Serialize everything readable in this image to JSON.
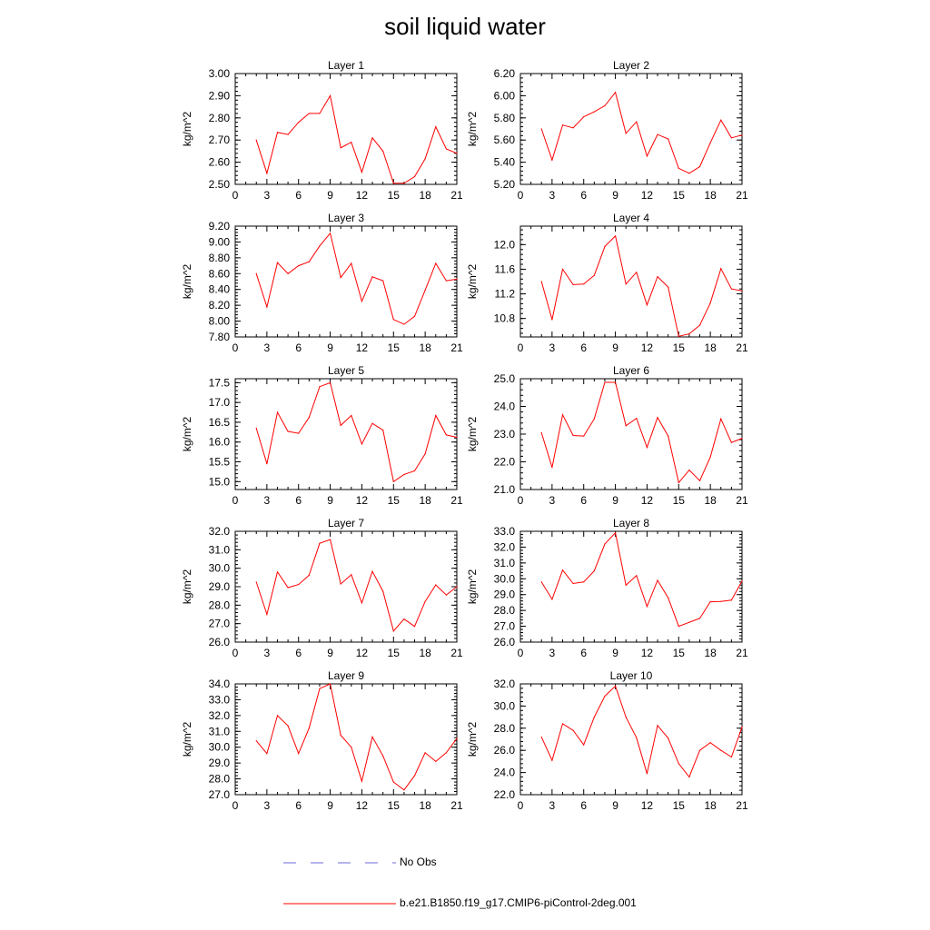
{
  "title": "soil liquid water",
  "legend": [
    {
      "label": "No Obs",
      "color": "#6a6ad8",
      "dash": "14,16"
    },
    {
      "label": "b.e21.B1850.f19_g17.CMIP6-piControl-2deg.001",
      "color": "#ff0000",
      "dash": ""
    }
  ],
  "chart_data": [
    {
      "type": "line",
      "title": "Layer 1",
      "ylabel": "kg/m^2",
      "xlim": [
        0,
        21
      ],
      "xticks": [
        0,
        3,
        6,
        9,
        12,
        15,
        18,
        21
      ],
      "ylim": [
        2.5,
        3.0
      ],
      "yticks": [
        2.5,
        2.6,
        2.7,
        2.8,
        2.9,
        3.0
      ],
      "ytick_labels": [
        "2.50",
        "2.60",
        "2.70",
        "2.80",
        "2.90",
        "3.00"
      ],
      "series": [
        {
          "color": "#ff0000",
          "x": [
            2,
            3,
            4,
            5,
            6,
            7,
            8,
            9,
            10,
            11,
            12,
            13,
            14,
            15,
            16,
            17,
            18,
            19,
            20,
            21
          ],
          "y": [
            2.7,
            2.55,
            2.735,
            2.725,
            2.78,
            2.82,
            2.82,
            2.9,
            2.665,
            2.69,
            2.555,
            2.71,
            2.65,
            2.505,
            2.505,
            2.535,
            2.615,
            2.76,
            2.66,
            2.64
          ]
        }
      ]
    },
    {
      "type": "line",
      "title": "Layer 2",
      "ylabel": "kg/m^2",
      "xlim": [
        0,
        21
      ],
      "xticks": [
        0,
        3,
        6,
        9,
        12,
        15,
        18,
        21
      ],
      "ylim": [
        5.2,
        6.2
      ],
      "yticks": [
        5.2,
        5.4,
        5.6,
        5.8,
        6.0,
        6.2
      ],
      "ytick_labels": [
        "5.20",
        "5.40",
        "5.60",
        "5.80",
        "6.00",
        "6.20"
      ],
      "series": [
        {
          "color": "#ff0000",
          "x": [
            2,
            3,
            4,
            5,
            6,
            7,
            8,
            9,
            10,
            11,
            12,
            13,
            14,
            15,
            16,
            17,
            18,
            19,
            20,
            21
          ],
          "y": [
            5.7,
            5.42,
            5.735,
            5.71,
            5.81,
            5.855,
            5.91,
            6.03,
            5.66,
            5.765,
            5.455,
            5.65,
            5.61,
            5.345,
            5.3,
            5.36,
            5.575,
            5.78,
            5.62,
            5.645
          ]
        }
      ]
    },
    {
      "type": "line",
      "title": "Layer 3",
      "ylabel": "kg/m^2",
      "xlim": [
        0,
        21
      ],
      "xticks": [
        0,
        3,
        6,
        9,
        12,
        15,
        18,
        21
      ],
      "ylim": [
        7.8,
        9.2
      ],
      "yticks": [
        7.8,
        8.0,
        8.2,
        8.4,
        8.6,
        8.8,
        9.0,
        9.2
      ],
      "ytick_labels": [
        "7.80",
        "8.00",
        "8.20",
        "8.40",
        "8.60",
        "8.80",
        "9.00",
        "9.20"
      ],
      "series": [
        {
          "color": "#ff0000",
          "x": [
            2,
            3,
            4,
            5,
            6,
            7,
            8,
            9,
            10,
            11,
            12,
            13,
            14,
            15,
            16,
            17,
            18,
            19,
            20,
            21
          ],
          "y": [
            8.6,
            8.18,
            8.74,
            8.6,
            8.7,
            8.75,
            8.95,
            9.11,
            8.55,
            8.73,
            8.25,
            8.56,
            8.51,
            8.02,
            7.96,
            8.06,
            8.39,
            8.73,
            8.51,
            8.53
          ]
        }
      ]
    },
    {
      "type": "line",
      "title": "Layer 4",
      "ylabel": "kg/m^2",
      "xlim": [
        0,
        21
      ],
      "xticks": [
        0,
        3,
        6,
        9,
        12,
        15,
        18,
        21
      ],
      "ylim": [
        10.5,
        12.3
      ],
      "yticks": [
        10.8,
        11.2,
        11.6,
        12.0
      ],
      "ytick_labels": [
        "10.8",
        "11.2",
        "11.6",
        "12.0"
      ],
      "series": [
        {
          "color": "#ff0000",
          "x": [
            2,
            3,
            4,
            5,
            6,
            7,
            8,
            9,
            10,
            11,
            12,
            13,
            14,
            15,
            16,
            17,
            18,
            19,
            20,
            21
          ],
          "y": [
            11.4,
            10.78,
            11.6,
            11.35,
            11.36,
            11.5,
            11.97,
            12.14,
            11.36,
            11.55,
            11.02,
            11.48,
            11.31,
            10.51,
            10.55,
            10.69,
            11.05,
            11.61,
            11.28,
            11.25
          ]
        }
      ]
    },
    {
      "type": "line",
      "title": "Layer 5",
      "ylabel": "kg/m^2",
      "xlim": [
        0,
        21
      ],
      "xticks": [
        0,
        3,
        6,
        9,
        12,
        15,
        18,
        21
      ],
      "ylim": [
        14.8,
        17.6
      ],
      "yticks": [
        15.0,
        15.5,
        16.0,
        16.5,
        17.0,
        17.5
      ],
      "ytick_labels": [
        "15.0",
        "15.5",
        "16.0",
        "16.5",
        "17.0",
        "17.5"
      ],
      "series": [
        {
          "color": "#ff0000",
          "x": [
            2,
            3,
            4,
            5,
            6,
            7,
            8,
            9,
            10,
            11,
            12,
            13,
            14,
            15,
            16,
            17,
            18,
            19,
            20,
            21
          ],
          "y": [
            16.35,
            15.45,
            16.75,
            16.27,
            16.22,
            16.62,
            17.4,
            17.5,
            16.42,
            16.67,
            15.95,
            16.47,
            16.3,
            15.0,
            15.18,
            15.27,
            15.7,
            16.67,
            16.18,
            16.12
          ]
        }
      ]
    },
    {
      "type": "line",
      "title": "Layer 6",
      "ylabel": "kg/m^2",
      "xlim": [
        0,
        21
      ],
      "xticks": [
        0,
        3,
        6,
        9,
        12,
        15,
        18,
        21
      ],
      "ylim": [
        21.0,
        25.0
      ],
      "yticks": [
        21.0,
        22.0,
        23.0,
        24.0,
        25.0
      ],
      "ytick_labels": [
        "21.0",
        "22.0",
        "23.0",
        "24.0",
        "25.0"
      ],
      "series": [
        {
          "color": "#ff0000",
          "x": [
            2,
            3,
            4,
            5,
            6,
            7,
            8,
            9,
            10,
            11,
            12,
            13,
            14,
            15,
            16,
            17,
            18,
            19,
            20,
            21
          ],
          "y": [
            23.05,
            21.8,
            23.7,
            22.95,
            22.93,
            23.55,
            24.87,
            24.87,
            23.3,
            23.57,
            22.52,
            23.6,
            22.93,
            21.25,
            21.7,
            21.32,
            22.17,
            23.55,
            22.7,
            22.85
          ]
        }
      ]
    },
    {
      "type": "line",
      "title": "Layer 7",
      "ylabel": "kg/m^2",
      "xlim": [
        0,
        21
      ],
      "xticks": [
        0,
        3,
        6,
        9,
        12,
        15,
        18,
        21
      ],
      "ylim": [
        26.0,
        32.0
      ],
      "yticks": [
        26.0,
        27.0,
        28.0,
        29.0,
        30.0,
        31.0,
        32.0
      ],
      "ytick_labels": [
        "26.0",
        "27.0",
        "28.0",
        "29.0",
        "30.0",
        "31.0",
        "32.0"
      ],
      "series": [
        {
          "color": "#ff0000",
          "x": [
            2,
            3,
            4,
            5,
            6,
            7,
            8,
            9,
            10,
            11,
            12,
            13,
            14,
            15,
            16,
            17,
            18,
            19,
            20,
            21
          ],
          "y": [
            29.25,
            27.5,
            29.8,
            28.95,
            29.12,
            29.62,
            31.35,
            31.55,
            29.15,
            29.65,
            28.12,
            29.83,
            28.75,
            26.6,
            27.25,
            26.85,
            28.2,
            29.1,
            28.55,
            29.0
          ]
        }
      ]
    },
    {
      "type": "line",
      "title": "Layer 8",
      "ylabel": "kg/m^2",
      "xlim": [
        0,
        21
      ],
      "xticks": [
        0,
        3,
        6,
        9,
        12,
        15,
        18,
        21
      ],
      "ylim": [
        26.0,
        33.0
      ],
      "yticks": [
        26.0,
        27.0,
        28.0,
        29.0,
        30.0,
        31.0,
        32.0,
        33.0
      ],
      "ytick_labels": [
        "26.0",
        "27.0",
        "28.0",
        "29.0",
        "30.0",
        "31.0",
        "32.0",
        "33.0"
      ],
      "series": [
        {
          "color": "#ff0000",
          "x": [
            2,
            3,
            4,
            5,
            6,
            7,
            8,
            9,
            10,
            11,
            12,
            13,
            14,
            15,
            16,
            17,
            18,
            19,
            20,
            21
          ],
          "y": [
            29.8,
            28.7,
            30.55,
            29.7,
            29.8,
            30.5,
            32.2,
            32.9,
            29.6,
            30.2,
            28.25,
            29.9,
            28.8,
            27.0,
            27.25,
            27.5,
            28.55,
            28.57,
            28.65,
            29.85
          ]
        }
      ]
    },
    {
      "type": "line",
      "title": "Layer 9",
      "ylabel": "kg/m^2",
      "xlim": [
        0,
        21
      ],
      "xticks": [
        0,
        3,
        6,
        9,
        12,
        15,
        18,
        21
      ],
      "ylim": [
        27.0,
        34.0
      ],
      "yticks": [
        27.0,
        28.0,
        29.0,
        30.0,
        31.0,
        32.0,
        33.0,
        34.0
      ],
      "ytick_labels": [
        "27.0",
        "28.0",
        "29.0",
        "30.0",
        "31.0",
        "32.0",
        "33.0",
        "34.0"
      ],
      "series": [
        {
          "color": "#ff0000",
          "x": [
            2,
            3,
            4,
            5,
            6,
            7,
            8,
            9,
            10,
            11,
            12,
            13,
            14,
            15,
            16,
            17,
            18,
            19,
            20,
            21
          ],
          "y": [
            30.4,
            29.6,
            32.0,
            31.35,
            29.6,
            31.2,
            33.7,
            34.0,
            30.75,
            30.0,
            27.85,
            30.65,
            29.45,
            27.8,
            27.3,
            28.2,
            29.65,
            29.1,
            29.65,
            30.55
          ]
        }
      ]
    },
    {
      "type": "line",
      "title": "Layer 10",
      "ylabel": "kg/m^2",
      "xlim": [
        0,
        21
      ],
      "xticks": [
        0,
        3,
        6,
        9,
        12,
        15,
        18,
        21
      ],
      "ylim": [
        22.0,
        32.0
      ],
      "yticks": [
        22.0,
        24.0,
        26.0,
        28.0,
        30.0,
        32.0
      ],
      "ytick_labels": [
        "22.0",
        "24.0",
        "26.0",
        "28.0",
        "30.0",
        "32.0"
      ],
      "series": [
        {
          "color": "#ff0000",
          "x": [
            2,
            3,
            4,
            5,
            6,
            7,
            8,
            9,
            10,
            11,
            12,
            13,
            14,
            15,
            16,
            17,
            18,
            19,
            20,
            21
          ],
          "y": [
            27.2,
            25.1,
            28.4,
            27.8,
            26.5,
            29.0,
            30.9,
            31.8,
            29.0,
            27.15,
            23.9,
            28.25,
            27.1,
            24.8,
            23.6,
            26.0,
            26.7,
            26.0,
            25.4,
            28.1
          ]
        }
      ]
    }
  ]
}
